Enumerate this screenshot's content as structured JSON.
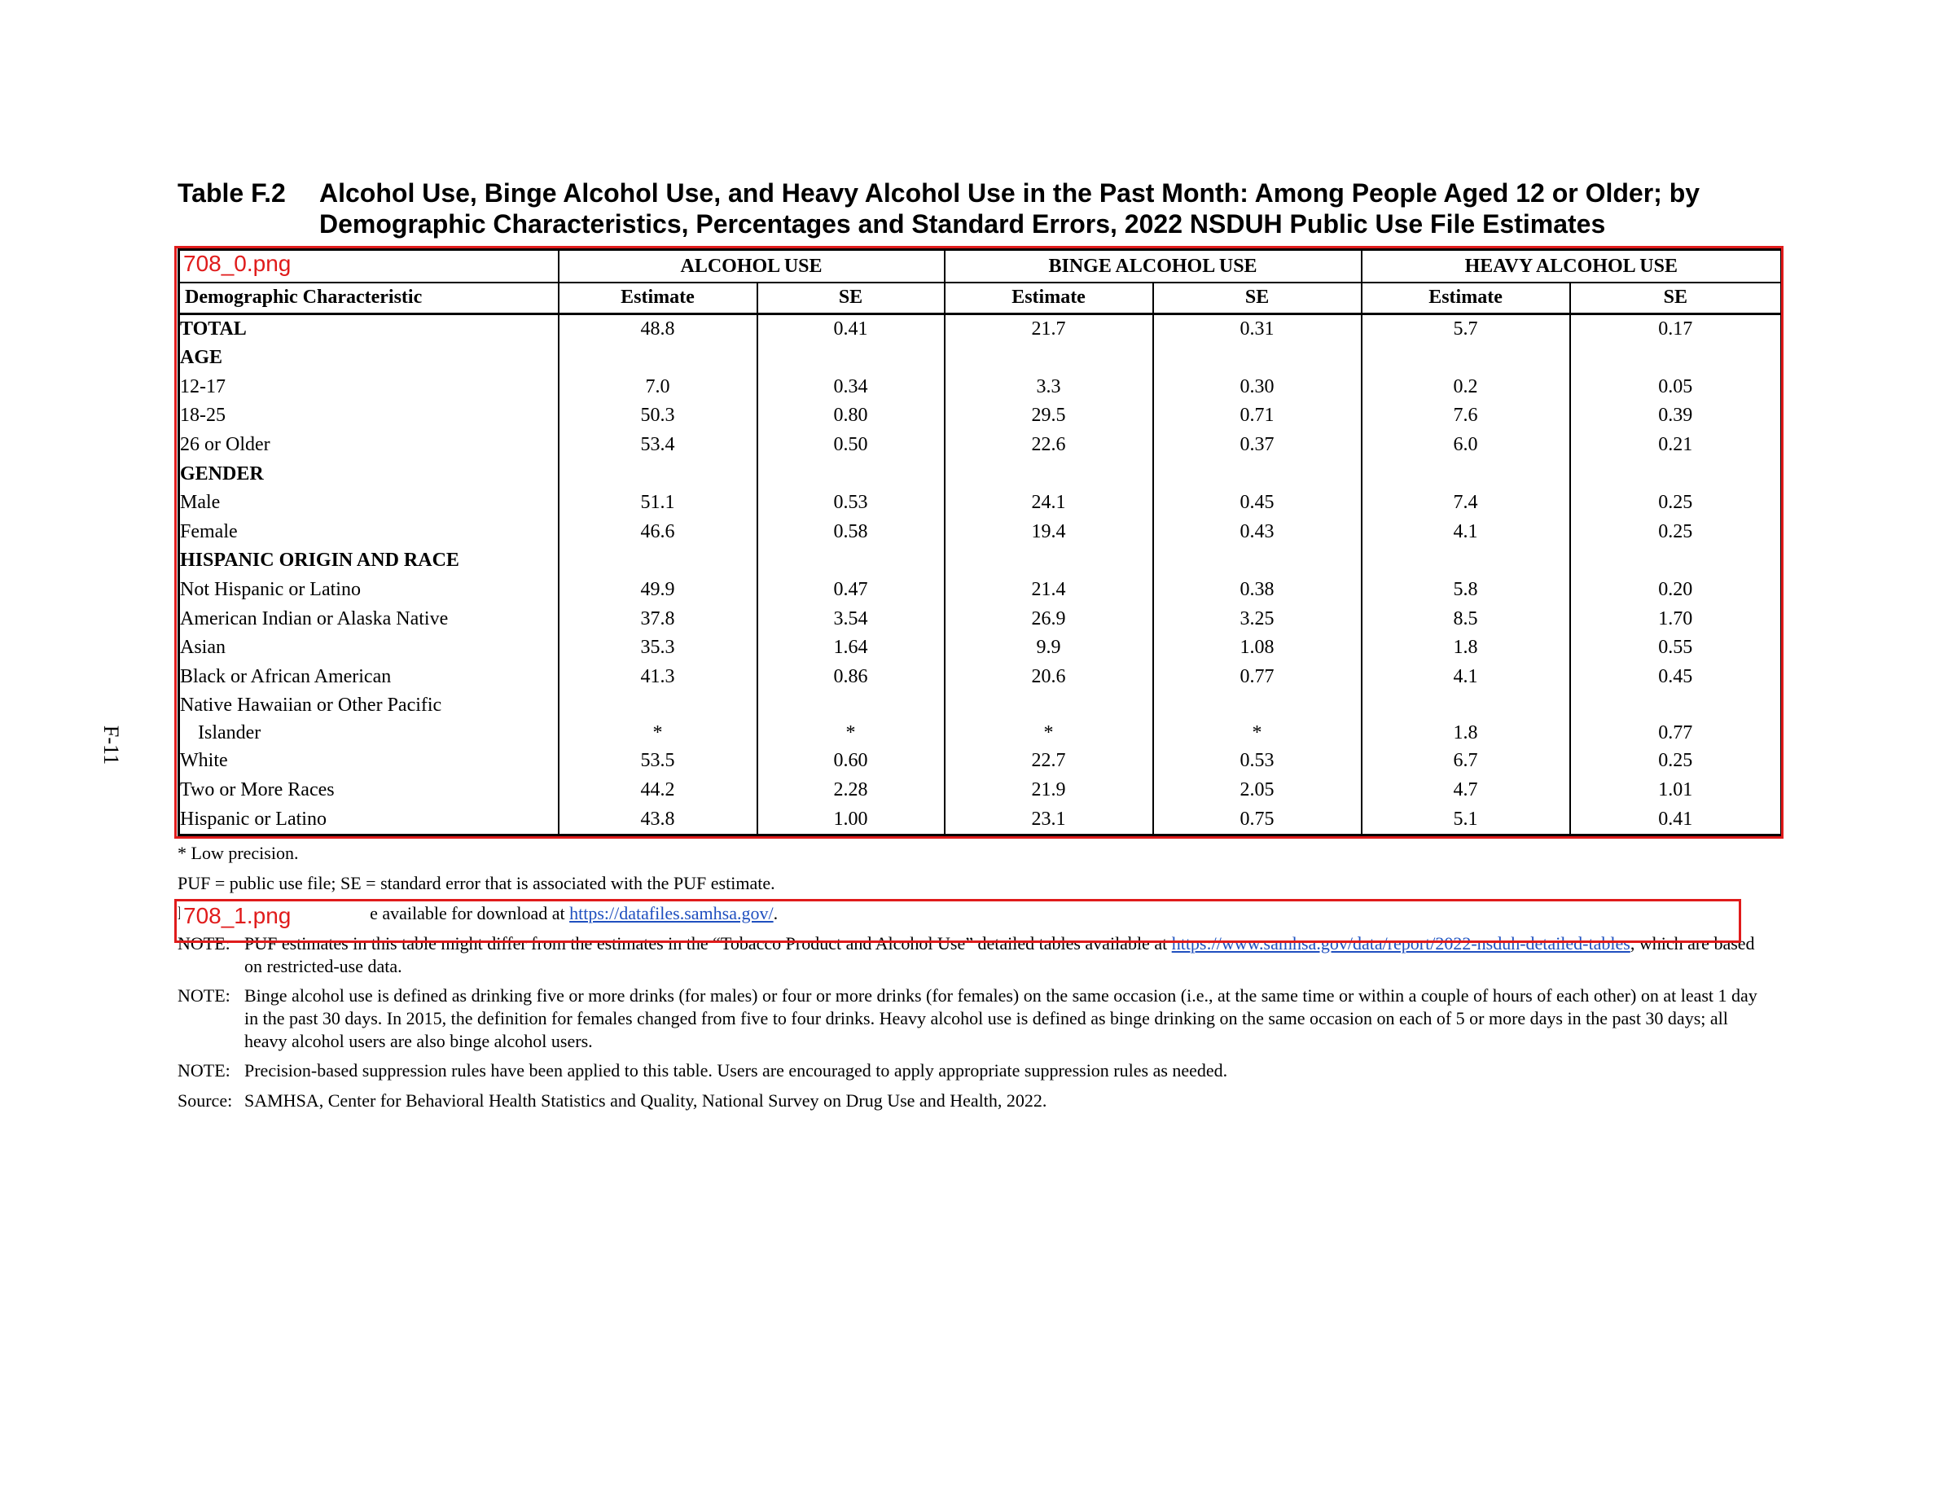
{
  "page_number": "F-11",
  "title": {
    "number": "Table F.2",
    "line1": "Alcohol Use, Binge Alcohol Use, and Heavy Alcohol Use in the Past Month: Among People Aged 12 or Older; by",
    "line2": "Demographic Characteristics, Percentages and Standard Errors, 2022 NSDUH Public Use File Estimates"
  },
  "table": {
    "groups": [
      "ALCOHOL USE",
      "BINGE ALCOHOL USE",
      "HEAVY ALCOHOL USE"
    ],
    "first_col_header": "Demographic Characteristic",
    "col_headers": [
      "Estimate",
      "SE",
      "Estimate",
      "SE",
      "Estimate",
      "SE"
    ],
    "rows": [
      {
        "label": "TOTAL",
        "values": [
          "48.8",
          "0.41",
          "21.7",
          "0.31",
          "5.7",
          "0.17"
        ]
      },
      {
        "label": "AGE",
        "values": [
          "",
          "",
          "",
          "",
          "",
          ""
        ]
      },
      {
        "label": "12-17",
        "values": [
          "7.0",
          "0.34",
          "3.3",
          "0.30",
          "0.2",
          "0.05"
        ]
      },
      {
        "label": "18-25",
        "values": [
          "50.3",
          "0.80",
          "29.5",
          "0.71",
          "7.6",
          "0.39"
        ]
      },
      {
        "label": "26 or Older",
        "values": [
          "53.4",
          "0.50",
          "22.6",
          "0.37",
          "6.0",
          "0.21"
        ]
      },
      {
        "label": "GENDER",
        "values": [
          "",
          "",
          "",
          "",
          "",
          ""
        ]
      },
      {
        "label": "Male",
        "values": [
          "51.1",
          "0.53",
          "24.1",
          "0.45",
          "7.4",
          "0.25"
        ]
      },
      {
        "label": "Female",
        "values": [
          "46.6",
          "0.58",
          "19.4",
          "0.43",
          "4.1",
          "0.25"
        ]
      },
      {
        "label": "HISPANIC ORIGIN AND RACE",
        "values": [
          "",
          "",
          "",
          "",
          "",
          ""
        ]
      },
      {
        "label": "Not Hispanic or Latino",
        "values": [
          "49.9",
          "0.47",
          "21.4",
          "0.38",
          "5.8",
          "0.20"
        ]
      },
      {
        "label": "American Indian or Alaska Native",
        "values": [
          "37.8",
          "3.54",
          "26.9",
          "3.25",
          "8.5",
          "1.70"
        ]
      },
      {
        "label": "Asian",
        "values": [
          "35.3",
          "1.64",
          "9.9",
          "1.08",
          "1.8",
          "0.55"
        ]
      },
      {
        "label": "Black or African American",
        "values": [
          "41.3",
          "0.86",
          "20.6",
          "0.77",
          "4.1",
          "0.45"
        ]
      },
      {
        "label": "Native Hawaiian or Other Pacific",
        "label_cont": "Islander",
        "values": [
          "*",
          "*",
          "*",
          "*",
          "1.8",
          "0.77"
        ]
      },
      {
        "label": "White",
        "values": [
          "53.5",
          "0.60",
          "22.7",
          "0.53",
          "6.7",
          "0.25"
        ]
      },
      {
        "label": "Two or More Races",
        "values": [
          "44.2",
          "2.28",
          "21.9",
          "2.05",
          "4.7",
          "1.01"
        ]
      },
      {
        "label": "Hispanic or Latino",
        "values": [
          "43.8",
          "1.00",
          "23.1",
          "0.75",
          "5.1",
          "0.41"
        ]
      }
    ]
  },
  "overlays": {
    "box0_label": "708_0.png",
    "box1_label": "708_1.png",
    "box1_marker": "l"
  },
  "footnotes": {
    "low_precision": "* Low precision.",
    "puf": "PUF = public use file; SE = standard error that is associated with the PUF estimate.",
    "download_text": "e available for download at ",
    "download_link": "https://datafiles.samhsa.gov/",
    "download_end": ".",
    "note_label": "NOTE:",
    "note1_text": "PUF estimates in this table might differ from the estimates in the “Tobacco Product and Alcohol Use” detailed tables available at ",
    "note1_link": "https://www.samhsa.gov/data/report/2022-nsduh-detailed-tables",
    "note1_end": ", which are based on restricted-use data.",
    "note2_text": "Binge alcohol use is defined as drinking five or more drinks (for males) or four or more drinks (for females) on the same occasion (i.e., at the same time or within a couple of hours of each other) on at least 1 day in the past 30 days. In 2015, the definition for females changed from five to four drinks. Heavy alcohol use is defined as binge drinking on the same occasion on each of 5 or more days in the past 30 days; all heavy alcohol users are also binge alcohol users.",
    "note3_text": "Precision-based suppression rules have been applied to this table. Users are encouraged to apply appropriate suppression rules as needed.",
    "source_label": "Source:",
    "source_text": "SAMHSA, Center for Behavioral Health Statistics and Quality, National Survey on Drug Use and Health, 2022."
  },
  "colors": {
    "overlay": "#e01b1b",
    "link": "#1f4fbf"
  }
}
